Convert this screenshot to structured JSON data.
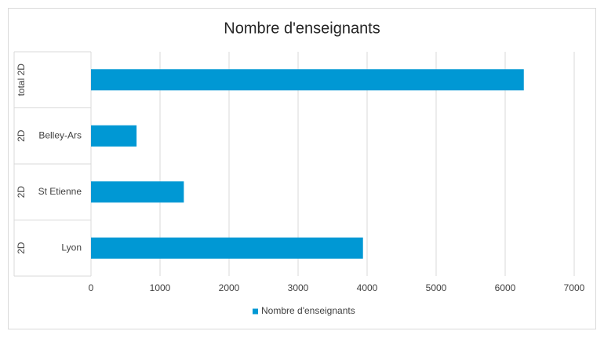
{
  "chart_data": {
    "type": "bar",
    "orientation": "horizontal",
    "title": "Nombre d'enseignants",
    "categories": [
      "Lyon",
      "St Etienne",
      "Belley-Ars",
      null
    ],
    "groups": [
      "2D",
      "2D",
      "2D",
      "total 2D"
    ],
    "series": [
      {
        "name": "Nombre d'enseignants",
        "color": "#0098d4",
        "values": [
          3940,
          1345,
          660,
          6270
        ]
      }
    ],
    "xlim": [
      0,
      7000
    ],
    "xticks": [
      0,
      1000,
      2000,
      3000,
      4000,
      5000,
      6000,
      7000
    ],
    "grid": true,
    "legend": "bottom"
  }
}
